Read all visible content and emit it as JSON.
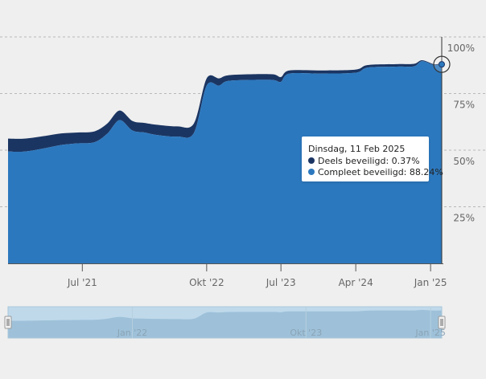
{
  "chart_data": {
    "type": "area",
    "stacked": true,
    "x_axis": {
      "type": "date",
      "tick_labels": [
        "Jul '21",
        "Okt '22",
        "Jul '23",
        "Apr '24",
        "Jan '25"
      ],
      "tick_dates": [
        "2021-07-01",
        "2022-10-01",
        "2023-07-01",
        "2024-04-01",
        "2025-01-01"
      ],
      "range": [
        "2020-10-01",
        "2025-02-11"
      ]
    },
    "y_axis": {
      "tick_labels": [
        "25%",
        "50%",
        "75%",
        "100%"
      ],
      "ticks": [
        25,
        50,
        75,
        100
      ],
      "range": [
        0,
        100
      ],
      "unit": "%",
      "position": "right",
      "grid": true
    },
    "series": [
      {
        "name": "Compleet beveiligd",
        "color": "#2c78be",
        "points": [
          [
            "2020-10-01",
            49.4
          ],
          [
            "2020-12-01",
            49.4
          ],
          [
            "2021-02-15",
            50.9
          ],
          [
            "2021-04-15",
            52.3
          ],
          [
            "2021-06-15",
            53.0
          ],
          [
            "2021-08-15",
            53.5
          ],
          [
            "2021-10-01",
            57.3
          ],
          [
            "2021-11-15",
            63.3
          ],
          [
            "2022-01-01",
            58.7
          ],
          [
            "2022-02-15",
            57.8
          ],
          [
            "2022-04-01",
            56.7
          ],
          [
            "2022-06-15",
            56.0
          ],
          [
            "2022-08-15",
            57.6
          ],
          [
            "2022-10-01",
            78.5
          ],
          [
            "2022-11-15",
            78.5
          ],
          [
            "2022-12-15",
            80.5
          ],
          [
            "2023-03-01",
            81.0
          ],
          [
            "2023-06-01",
            81.0
          ],
          [
            "2023-07-01",
            80.2
          ],
          [
            "2023-08-01",
            83.8
          ],
          [
            "2023-12-01",
            83.8
          ],
          [
            "2024-04-01",
            84.2
          ],
          [
            "2024-05-15",
            86.5
          ],
          [
            "2024-09-01",
            86.9
          ],
          [
            "2024-11-01",
            87.0
          ],
          [
            "2024-12-01",
            89.3
          ],
          [
            "2025-01-15",
            87.5
          ],
          [
            "2025-02-11",
            88.24
          ]
        ]
      },
      {
        "name": "Deels beveiligd",
        "color": "#1b3562",
        "points": [
          [
            "2020-10-01",
            5.7
          ],
          [
            "2020-12-01",
            5.7
          ],
          [
            "2021-02-15",
            5.4
          ],
          [
            "2021-04-15",
            5.1
          ],
          [
            "2021-06-15",
            4.8
          ],
          [
            "2021-08-15",
            4.8
          ],
          [
            "2021-10-01",
            4.5
          ],
          [
            "2021-11-15",
            4.2
          ],
          [
            "2022-01-01",
            4.2
          ],
          [
            "2022-02-15",
            4.2
          ],
          [
            "2022-04-01",
            4.5
          ],
          [
            "2022-06-15",
            4.5
          ],
          [
            "2022-08-15",
            4.2
          ],
          [
            "2022-10-01",
            3.2
          ],
          [
            "2022-11-15",
            3.2
          ],
          [
            "2022-12-15",
            2.5
          ],
          [
            "2023-03-01",
            2.5
          ],
          [
            "2023-06-01",
            2.5
          ],
          [
            "2023-07-01",
            2.1
          ],
          [
            "2023-08-01",
            1.4
          ],
          [
            "2023-12-01",
            1.4
          ],
          [
            "2024-04-01",
            1.4
          ],
          [
            "2024-05-15",
            1.1
          ],
          [
            "2024-09-01",
            1.1
          ],
          [
            "2024-11-01",
            1.1
          ],
          [
            "2024-12-01",
            0.4
          ],
          [
            "2025-01-15",
            0.4
          ],
          [
            "2025-02-11",
            0.37
          ]
        ]
      }
    ],
    "tooltip": {
      "title": "Dinsdag, 11 Feb 2025",
      "rows": [
        {
          "label": "Deels beveiligd: 0.37%",
          "color": "#1b3562"
        },
        {
          "label": "Compleet beveiligd: 88.24%",
          "color": "#2c78be"
        }
      ]
    },
    "navigator": {
      "tick_labels": [
        "Jan '22",
        "Okt '23",
        "Jan '25"
      ],
      "tick_dates": [
        "2022-01-01",
        "2023-10-01",
        "2025-01-01"
      ],
      "range": [
        "2020-10-01",
        "2025-02-11"
      ],
      "selected_range": [
        "2020-10-01",
        "2025-02-11"
      ]
    },
    "legend": "none"
  }
}
